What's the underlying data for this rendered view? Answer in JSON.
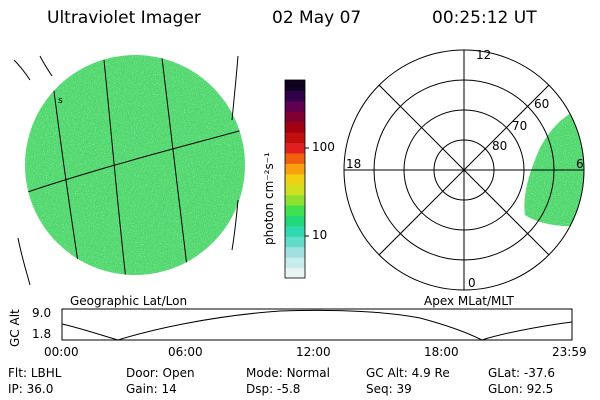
{
  "header": {
    "title": "Ultraviolet Imager",
    "date": "02 May 07",
    "time": "00:25:12 UT"
  },
  "colorbar": {
    "unit_label": "photon cm⁻²s⁻¹",
    "ticks": [
      "100",
      "10"
    ],
    "colors": [
      "#e8f4f4",
      "#c8ecec",
      "#a0e0e0",
      "#60dcc8",
      "#30d8b0",
      "#20d878",
      "#40e050",
      "#90e030",
      "#d0e020",
      "#f0d010",
      "#f8a010",
      "#f06010",
      "#e02020",
      "#c01010",
      "#a00010",
      "#800030",
      "#600050",
      "#30004a",
      "#100020"
    ]
  },
  "polar": {
    "lat_labels": [
      "80",
      "70",
      "60"
    ],
    "mlt_labels": {
      "top": "12",
      "left": "18",
      "right": "6",
      "bottom": "0"
    }
  },
  "projection_labels": {
    "left": "Geographic Lat/Lon",
    "right": "Apex MLat/MLT"
  },
  "alt_plot": {
    "ylabel": "GC Alt",
    "ymax": "9.0",
    "ymin": "1.8",
    "xticks": [
      "00:00",
      "06:00",
      "12:00",
      "18:00",
      "23:59"
    ]
  },
  "footer": {
    "row1": [
      {
        "key": "Flt:",
        "val": "LBHL"
      },
      {
        "key": "Door:",
        "val": "Open"
      },
      {
        "key": "Mode:",
        "val": "Normal"
      },
      {
        "key": "GC Alt:",
        "val": "4.9 Re"
      },
      {
        "key": "GLat:",
        "val": "-37.6"
      }
    ],
    "row2": [
      {
        "key": "IP:",
        "val": "36.0"
      },
      {
        "key": "Gain:",
        "val": "14"
      },
      {
        "key": "Dsp:",
        "val": "-5.8"
      },
      {
        "key": "Seq:",
        "val": "39"
      },
      {
        "key": "GLon:",
        "val": "92.5"
      }
    ]
  }
}
